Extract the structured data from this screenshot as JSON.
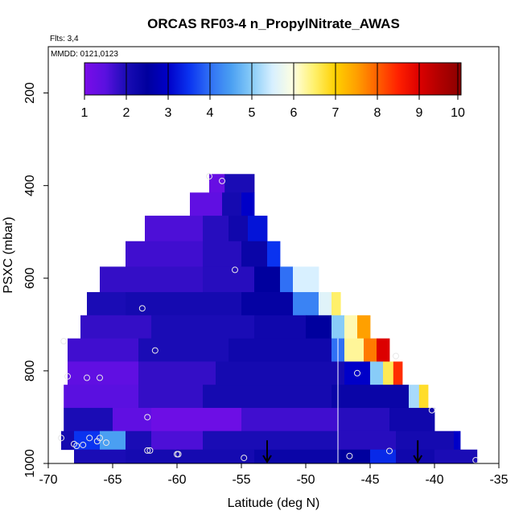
{
  "chart_data": {
    "type": "heatmap",
    "title": "ORCAS RF03-4 n_PropylNitrate_AWAS",
    "flights_label": "Flts: 3,4",
    "dates_label": "MMDD: 0121,0123",
    "xlabel": "Latitude (deg N)",
    "ylabel": "PSXC (mbar)",
    "xlim": [
      -70,
      -35
    ],
    "ylim": [
      1000,
      100
    ],
    "x_ticks": [
      -70,
      -65,
      -60,
      -55,
      -50,
      -45,
      -40,
      -35
    ],
    "y_ticks": [
      200,
      400,
      600,
      800,
      1000
    ],
    "colorbar": {
      "min": 1,
      "max": 10,
      "ticks": [
        1,
        2,
        3,
        4,
        5,
        6,
        7,
        8,
        9,
        10
      ],
      "colors": [
        "#7a0ce8",
        "#5a10e0",
        "#1a0cb5",
        "#00009e",
        "#0000c8",
        "#0a33f0",
        "#3070f5",
        "#4a9ff2",
        "#88ccf8",
        "#d8f0ff",
        "#ffffe0",
        "#fff06a",
        "#ffd000",
        "#ffa000",
        "#ff6000",
        "#ff2000",
        "#dc0000",
        "#b00000",
        "#8a0000"
      ]
    },
    "rows": [
      {
        "p_top": 375,
        "p_bot": 415,
        "cells": [
          {
            "lat0": -57.5,
            "lat1": -56.3,
            "v": 1.3
          },
          {
            "lat0": -56.3,
            "lat1": -54.0,
            "v": 2.0
          }
        ]
      },
      {
        "p_top": 415,
        "p_bot": 465,
        "cells": [
          {
            "lat0": -59.0,
            "lat1": -56.5,
            "v": 1.4
          },
          {
            "lat0": -56.5,
            "lat1": -55.0,
            "v": 2.1
          },
          {
            "lat0": -55.0,
            "lat1": -54.0,
            "v": 3.0
          }
        ]
      },
      {
        "p_top": 465,
        "p_bot": 520,
        "cells": [
          {
            "lat0": -62.5,
            "lat1": -58.0,
            "v": 1.6
          },
          {
            "lat0": -58.0,
            "lat1": -56.0,
            "v": 1.9
          },
          {
            "lat0": -56.0,
            "lat1": -54.5,
            "v": 2.2
          },
          {
            "lat0": -54.5,
            "lat1": -53.0,
            "v": 3.2
          }
        ]
      },
      {
        "p_top": 520,
        "p_bot": 575,
        "cells": [
          {
            "lat0": -64.0,
            "lat1": -58.0,
            "v": 1.7
          },
          {
            "lat0": -58.0,
            "lat1": -55.0,
            "v": 1.9
          },
          {
            "lat0": -55.0,
            "lat1": -53.0,
            "v": 2.3
          },
          {
            "lat0": -53.0,
            "lat1": -52.0,
            "v": 3.5
          }
        ]
      },
      {
        "p_top": 575,
        "p_bot": 630,
        "cells": [
          {
            "lat0": -66.0,
            "lat1": -58.0,
            "v": 1.8
          },
          {
            "lat0": -58.0,
            "lat1": -54.0,
            "v": 1.9
          },
          {
            "lat0": -54.0,
            "lat1": -52.0,
            "v": 2.5
          },
          {
            "lat0": -52.0,
            "lat1": -51.0,
            "v": 4.0
          },
          {
            "lat0": -51.0,
            "lat1": -49.0,
            "v": 5.5
          }
        ]
      },
      {
        "p_top": 630,
        "p_bot": 680,
        "cells": [
          {
            "lat0": -67.0,
            "lat1": -64.0,
            "v": 2.0
          },
          {
            "lat0": -64.0,
            "lat1": -55.0,
            "v": 2.1
          },
          {
            "lat0": -55.0,
            "lat1": -51.0,
            "v": 2.4
          },
          {
            "lat0": -51.0,
            "lat1": -49.0,
            "v": 4.2
          },
          {
            "lat0": -49.0,
            "lat1": -48.0,
            "v": 5.6
          },
          {
            "lat0": -48.0,
            "lat1": -47.3,
            "v": 6.5
          }
        ]
      },
      {
        "p_top": 680,
        "p_bot": 730,
        "cells": [
          {
            "lat0": -67.5,
            "lat1": -62.0,
            "v": 1.8
          },
          {
            "lat0": -62.0,
            "lat1": -54.0,
            "v": 2.0
          },
          {
            "lat0": -54.0,
            "lat1": -50.0,
            "v": 2.2
          },
          {
            "lat0": -50.0,
            "lat1": -48.0,
            "v": 2.5
          },
          {
            "lat0": -48.0,
            "lat1": -47.0,
            "v": 5.0
          },
          {
            "lat0": -47.0,
            "lat1": -46.0,
            "v": 6.2
          },
          {
            "lat0": -46.0,
            "lat1": -45.0,
            "v": 7.5
          }
        ]
      },
      {
        "p_top": 730,
        "p_bot": 780,
        "cells": [
          {
            "lat0": -68.5,
            "lat1": -63.0,
            "v": 1.7
          },
          {
            "lat0": -63.0,
            "lat1": -56.0,
            "v": 2.0
          },
          {
            "lat0": -56.0,
            "lat1": -48.0,
            "v": 2.2
          },
          {
            "lat0": -48.0,
            "lat1": -47.0,
            "v": 4.0
          },
          {
            "lat0": -47.0,
            "lat1": -45.5,
            "v": 6.3
          },
          {
            "lat0": -45.5,
            "lat1": -44.5,
            "v": 7.8
          },
          {
            "lat0": -44.5,
            "lat1": -43.5,
            "v": 9.0
          }
        ]
      },
      {
        "p_top": 780,
        "p_bot": 830,
        "cells": [
          {
            "lat0": -68.5,
            "lat1": -63.0,
            "v": 1.4
          },
          {
            "lat0": -63.0,
            "lat1": -57.0,
            "v": 1.8
          },
          {
            "lat0": -57.0,
            "lat1": -47.0,
            "v": 2.1
          },
          {
            "lat0": -47.0,
            "lat1": -45.0,
            "v": 3.0
          },
          {
            "lat0": -45.0,
            "lat1": -44.0,
            "v": 5.0
          },
          {
            "lat0": -44.0,
            "lat1": -43.2,
            "v": 6.6
          },
          {
            "lat0": -43.2,
            "lat1": -42.5,
            "v": 8.4
          }
        ]
      },
      {
        "p_top": 830,
        "p_bot": 880,
        "cells": [
          {
            "lat0": -68.8,
            "lat1": -63.0,
            "v": 1.5
          },
          {
            "lat0": -63.0,
            "lat1": -58.0,
            "v": 1.8
          },
          {
            "lat0": -58.0,
            "lat1": -48.0,
            "v": 2.1
          },
          {
            "lat0": -48.0,
            "lat1": -42.0,
            "v": 2.3
          },
          {
            "lat0": -42.0,
            "lat1": -41.2,
            "v": 5.2
          },
          {
            "lat0": -41.2,
            "lat1": -40.5,
            "v": 6.8
          }
        ]
      },
      {
        "p_top": 880,
        "p_bot": 930,
        "cells": [
          {
            "lat0": -68.8,
            "lat1": -65.0,
            "v": 2.0
          },
          {
            "lat0": -65.0,
            "lat1": -62.0,
            "v": 1.4
          },
          {
            "lat0": -62.0,
            "lat1": -55.0,
            "v": 1.2
          },
          {
            "lat0": -55.0,
            "lat1": -47.5,
            "v": 1.7
          },
          {
            "lat0": -47.5,
            "lat1": -43.5,
            "v": 1.9
          },
          {
            "lat0": -43.5,
            "lat1": -40.0,
            "v": 2.2
          }
        ]
      },
      {
        "p_top": 930,
        "p_bot": 970,
        "cells": [
          {
            "lat0": -69.0,
            "lat1": -68.0,
            "v": 2.1
          },
          {
            "lat0": -68.0,
            "lat1": -66.0,
            "v": 3.5
          },
          {
            "lat0": -66.0,
            "lat1": -64.0,
            "v": 4.5
          },
          {
            "lat0": -64.0,
            "lat1": -62.0,
            "v": 2.0
          },
          {
            "lat0": -62.0,
            "lat1": -58.0,
            "v": 1.6
          },
          {
            "lat0": -58.0,
            "lat1": -47.5,
            "v": 2.0
          },
          {
            "lat0": -47.5,
            "lat1": -43.0,
            "v": 1.9
          },
          {
            "lat0": -43.0,
            "lat1": -38.5,
            "v": 2.1
          },
          {
            "lat0": -38.5,
            "lat1": -38.0,
            "v": 3.0
          }
        ]
      },
      {
        "p_top": 970,
        "p_bot": 1000,
        "cells": [
          {
            "lat0": -68.0,
            "lat1": -64.0,
            "v": 2.0
          },
          {
            "lat0": -64.0,
            "lat1": -54.0,
            "v": 2.1
          },
          {
            "lat0": -54.0,
            "lat1": -47.5,
            "v": 2.3
          },
          {
            "lat0": -47.5,
            "lat1": -45.0,
            "v": 2.5
          },
          {
            "lat0": -45.0,
            "lat1": -43.0,
            "v": 3.4
          },
          {
            "lat0": -43.0,
            "lat1": -40.0,
            "v": 2.2
          },
          {
            "lat0": -40.0,
            "lat1": -36.7,
            "v": 2.0
          }
        ]
      }
    ],
    "separator_lat": -47.5,
    "points": [
      {
        "lat": -57.5,
        "p": 380
      },
      {
        "lat": -56.5,
        "p": 390
      },
      {
        "lat": -55.5,
        "p": 582
      },
      {
        "lat": -62.7,
        "p": 665
      },
      {
        "lat": -68.8,
        "p": 736
      },
      {
        "lat": -61.7,
        "p": 756
      },
      {
        "lat": -68.5,
        "p": 812
      },
      {
        "lat": -67.0,
        "p": 815
      },
      {
        "lat": -66.0,
        "p": 815
      },
      {
        "lat": -46.0,
        "p": 805
      },
      {
        "lat": -43.0,
        "p": 768
      },
      {
        "lat": -40.2,
        "p": 885
      },
      {
        "lat": -62.3,
        "p": 900
      },
      {
        "lat": -69.0,
        "p": 945
      },
      {
        "lat": -68.0,
        "p": 958
      },
      {
        "lat": -67.8,
        "p": 962
      },
      {
        "lat": -67.3,
        "p": 960
      },
      {
        "lat": -66.8,
        "p": 945
      },
      {
        "lat": -66.2,
        "p": 952
      },
      {
        "lat": -66.0,
        "p": 945
      },
      {
        "lat": -65.5,
        "p": 955
      },
      {
        "lat": -62.3,
        "p": 972
      },
      {
        "lat": -62.1,
        "p": 972
      },
      {
        "lat": -60.0,
        "p": 980
      },
      {
        "lat": -59.9,
        "p": 980
      },
      {
        "lat": -54.8,
        "p": 988
      },
      {
        "lat": -46.6,
        "p": 984
      },
      {
        "lat": -43.5,
        "p": 973
      },
      {
        "lat": -36.8,
        "p": 993
      }
    ],
    "arrows": [
      {
        "lat": -53.0,
        "p_from": 950,
        "p_to": 1000
      },
      {
        "lat": -41.3,
        "p_from": 950,
        "p_to": 1000
      }
    ]
  }
}
